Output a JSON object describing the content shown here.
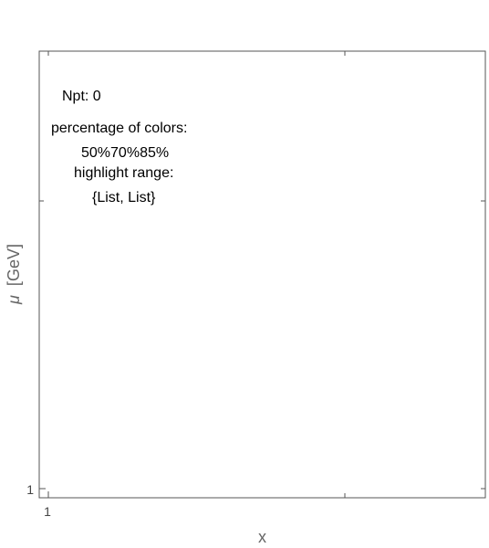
{
  "chart_data": {
    "type": "scatter",
    "title": "",
    "xlabel": "x",
    "ylabel_symbol": "μ",
    "ylabel_unit": "[GeV]",
    "x_tick_labels": [
      "1"
    ],
    "y_tick_labels": [
      "1"
    ],
    "series": [],
    "grid": false
  },
  "annotations": {
    "npt": "Npt: 0",
    "percentage_title": "percentage of colors:",
    "percentages": [
      "50%",
      "70%",
      "85%"
    ],
    "highlight_title": "highlight range:",
    "highlight_value": "{List, List}"
  },
  "colors": {
    "frame": "#555555",
    "axis_label": "#666666",
    "text": "#000000"
  }
}
